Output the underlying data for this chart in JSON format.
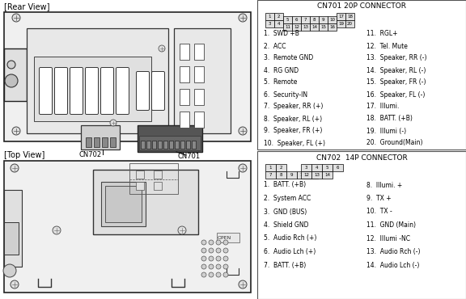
{
  "white": "#ffffff",
  "black": "#000000",
  "cn701_title": "CN701 20P CONNECTOR",
  "cn702_title": "CN702  14P CONNECTOR",
  "cn701_pins_left": [
    "1.  SWD +B",
    "2.  ACC",
    "3.  Remote GND",
    "4.  RG GND",
    "5.  Remote",
    "6.  Security-IN",
    "7.  Speaker, RR (+)",
    "8.  Speaker, RL (+)",
    "9.  Speaker, FR (+)",
    "10.  Speaker, FL (+)"
  ],
  "cn701_pins_right": [
    "11.  RGL+",
    "12.  Tel. Mute",
    "13.  Speaker, RR (-)",
    "14.  Speaker, RL (-)",
    "15.  Speaker, FR (-)",
    "16.  Speaker, FL (-)",
    "17.  Illumi.",
    "18.  BATT. (+B)",
    "19.  Illumi (-)",
    "20.  Ground(Main)"
  ],
  "cn702_pins_left": [
    "1.  BATT. (+B)",
    "2.  System ACC",
    "3.  GND (BUS)",
    "4.  Shield GND",
    "5.  Audio Rch (+)",
    "6.  Audio Lch (+)",
    "7.  BATT. (+B)"
  ],
  "cn702_pins_right": [
    "8.  Illumi. +",
    "9.  TX +",
    "10.  TX -",
    "11.  GND (Main)",
    "12.  Illumi -NC",
    "13.  Audio Rch (-)",
    "14.  Audio Lch (-)"
  ]
}
